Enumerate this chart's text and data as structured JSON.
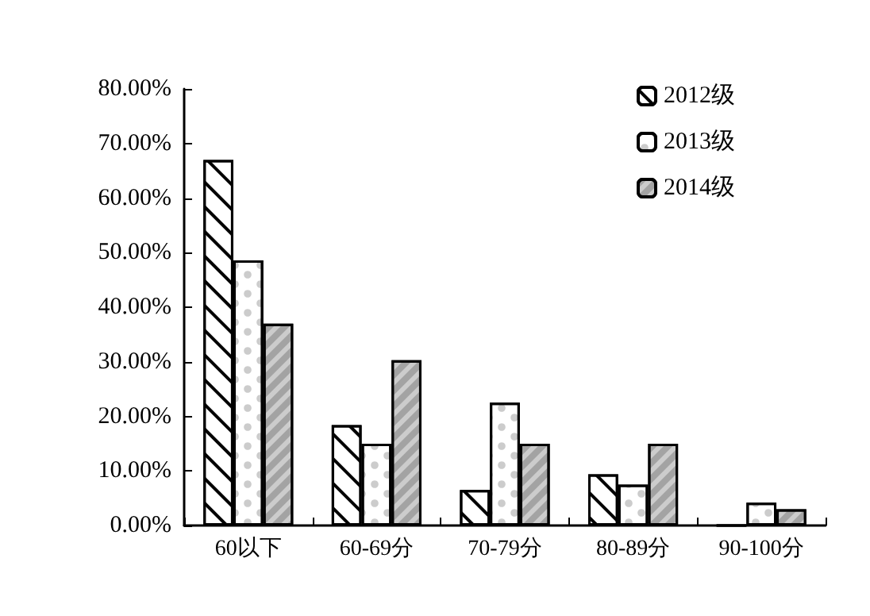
{
  "chart_data": {
    "type": "bar",
    "categories": [
      "60以下",
      "60-69分",
      "70-79分",
      "80-89分",
      "90-100分"
    ],
    "series": [
      {
        "name": "2012级",
        "color": "#ffffff",
        "values": [
          67.0,
          18.4,
          6.5,
          9.4,
          0
        ]
      },
      {
        "name": "2013级",
        "color": "#ffffff",
        "values": [
          48.6,
          15.0,
          22.5,
          7.5,
          4.2
        ]
      },
      {
        "name": "2014级",
        "color": "#cccccc",
        "values": [
          37.0,
          30.3,
          15.0,
          15.0,
          3.0
        ]
      }
    ],
    "ylim": [
      0,
      80
    ],
    "yticks": [
      {
        "value": 0,
        "label": "0.00%"
      },
      {
        "value": 10,
        "label": "10.00%"
      },
      {
        "value": 20,
        "label": "20.00%"
      },
      {
        "value": 30,
        "label": "30.00%"
      },
      {
        "value": 40,
        "label": "40.00%"
      },
      {
        "value": 50,
        "label": "50.00%"
      },
      {
        "value": 60,
        "label": "60.00%"
      },
      {
        "value": 70,
        "label": "70.00%"
      },
      {
        "value": 80,
        "label": "80.00%"
      }
    ],
    "grid": false,
    "legend": "top right"
  }
}
